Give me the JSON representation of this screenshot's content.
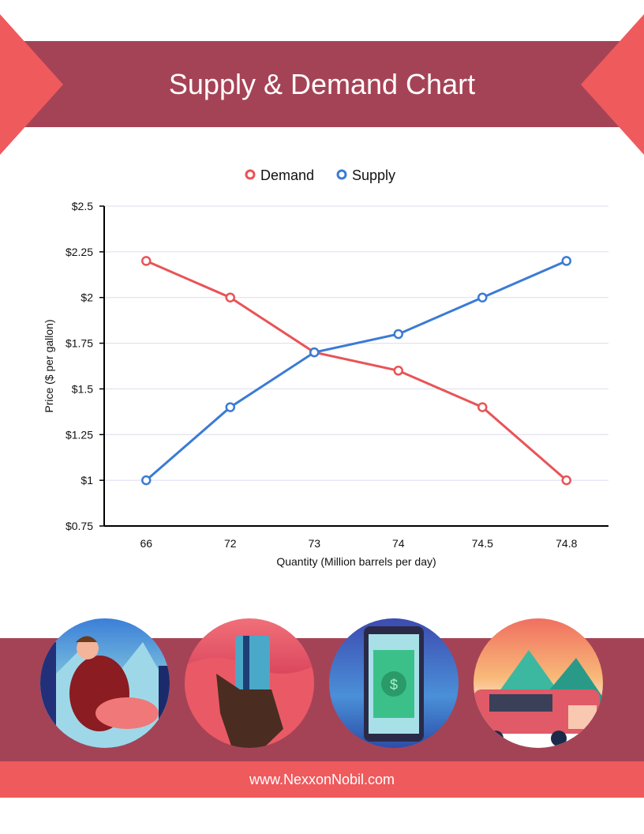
{
  "header": {
    "title": "Supply & Demand Chart"
  },
  "footer": {
    "url": "www.NexxonNobil.com"
  },
  "colors": {
    "banner": "#a54356",
    "accent": "#ef5a5d",
    "demand": "#e85457",
    "supply": "#3a7bd5",
    "grid": "#dcdcf0"
  },
  "illustrations": [
    "person-driving-car",
    "hand-holding-credit-card",
    "phone-with-money",
    "family-in-car"
  ],
  "chart_data": {
    "type": "line",
    "title": "",
    "xlabel": "Quantity (Million barrels per day)",
    "ylabel": "Price ($ per gallon)",
    "categories": [
      "66",
      "72",
      "73",
      "74",
      "74.5",
      "74.8"
    ],
    "ylim": [
      0.75,
      2.5
    ],
    "yticks": [
      0.75,
      1,
      1.25,
      1.5,
      1.75,
      2,
      2.25,
      2.5
    ],
    "ytick_labels": [
      "$0.75",
      "$1",
      "$1.25",
      "$1.5",
      "$1.75",
      "$2",
      "$2.25",
      "$2.5"
    ],
    "grid": true,
    "legend": "top-center",
    "series": [
      {
        "name": "Demand",
        "color": "#e85457",
        "values": [
          2.2,
          2.0,
          1.7,
          1.6,
          1.4,
          1.0
        ]
      },
      {
        "name": "Supply",
        "color": "#3a7bd5",
        "values": [
          1.0,
          1.4,
          1.7,
          1.8,
          2.0,
          2.2
        ]
      }
    ]
  }
}
